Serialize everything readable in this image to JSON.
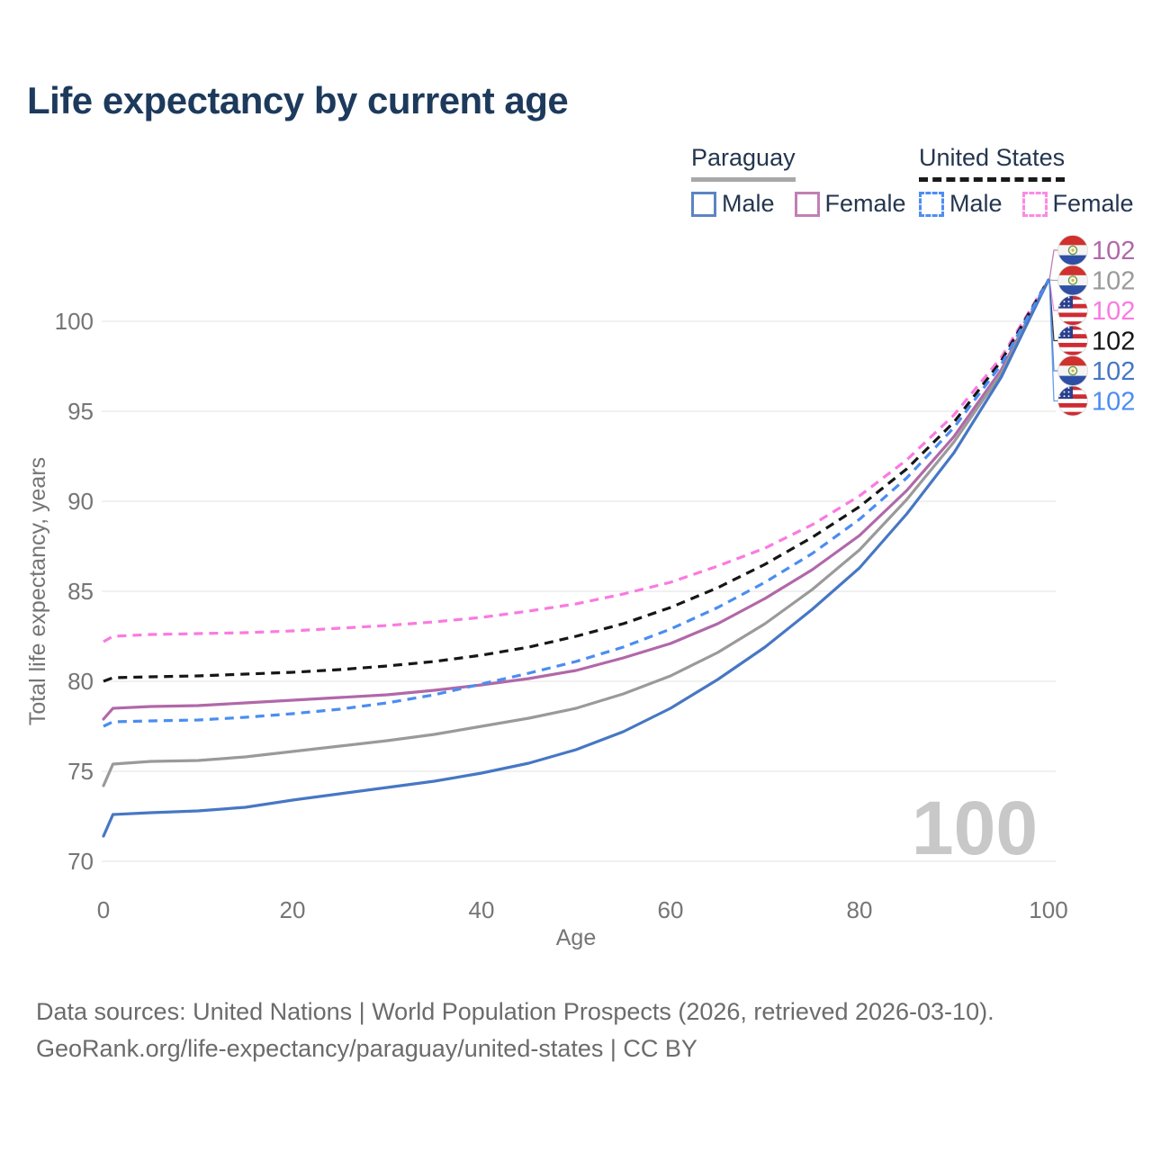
{
  "title": "Life expectancy by current age",
  "watermark": "100",
  "footer": {
    "line1": "Data sources: United Nations | World Population Prospects (2026, retrieved 2026-03-10).",
    "line2": "GeoRank.org/life-expectancy/paraguay/united-states | CC BY"
  },
  "legend": {
    "groups": [
      {
        "country": "Paraguay",
        "line_style": "solid",
        "line_color": "#a8a8a8",
        "items": [
          {
            "label": "Male",
            "color": "#5b84c4",
            "dashed": false
          },
          {
            "label": "Female",
            "color": "#c17fb5",
            "dashed": false
          }
        ]
      },
      {
        "country": "United States",
        "line_style": "dashed",
        "line_color": "#1a1a1a",
        "items": [
          {
            "label": "Male",
            "color": "#4e8df2",
            "dashed": true
          },
          {
            "label": "Female",
            "color": "#fb8ae4",
            "dashed": true
          }
        ]
      }
    ]
  },
  "chart_data": {
    "type": "line",
    "title": "Life expectancy by current age",
    "xlabel": "Age",
    "ylabel": "Total life expectancy, years",
    "xlim": [
      0,
      100
    ],
    "ylim": [
      70,
      102.5
    ],
    "xticks": [
      0,
      20,
      40,
      60,
      80,
      100
    ],
    "yticks": [
      70,
      75,
      80,
      85,
      90,
      95,
      100
    ],
    "grid": "horizontal-only",
    "legend_position": "top-right",
    "x": [
      0,
      1,
      5,
      10,
      15,
      20,
      25,
      30,
      35,
      40,
      45,
      50,
      55,
      60,
      65,
      70,
      75,
      80,
      85,
      90,
      95,
      100
    ],
    "series": [
      {
        "id": "py-female",
        "name": "Paraguay — Female",
        "flag": "py",
        "color": "#b168a8",
        "dashed": false,
        "end_label": "102",
        "values": [
          77.9,
          78.5,
          78.6,
          78.65,
          78.8,
          78.95,
          79.1,
          79.25,
          79.5,
          79.8,
          80.15,
          80.6,
          81.3,
          82.1,
          83.2,
          84.6,
          86.2,
          88.1,
          90.6,
          93.6,
          97.3,
          102.3
        ]
      },
      {
        "id": "py-both",
        "name": "Paraguay — Both sexes",
        "flag": "py",
        "color": "#9a9a9a",
        "dashed": false,
        "end_label": "102",
        "values": [
          74.2,
          75.4,
          75.55,
          75.6,
          75.8,
          76.1,
          76.4,
          76.7,
          77.05,
          77.5,
          77.95,
          78.5,
          79.3,
          80.3,
          81.6,
          83.2,
          85.1,
          87.3,
          90.1,
          93.3,
          97.1,
          102.3
        ]
      },
      {
        "id": "us-female",
        "name": "United States — Female",
        "flag": "us",
        "color": "#fa7ae0",
        "dashed": true,
        "end_label": "102",
        "values": [
          82.2,
          82.5,
          82.6,
          82.65,
          82.7,
          82.8,
          82.95,
          83.1,
          83.3,
          83.55,
          83.9,
          84.3,
          84.85,
          85.5,
          86.4,
          87.4,
          88.7,
          90.3,
          92.3,
          94.8,
          98.0,
          102.3
        ]
      },
      {
        "id": "us-both",
        "name": "United States — Both sexes",
        "flag": "us",
        "color": "#161616",
        "dashed": true,
        "end_label": "102",
        "values": [
          80.0,
          80.2,
          80.25,
          80.3,
          80.4,
          80.5,
          80.65,
          80.85,
          81.1,
          81.45,
          81.9,
          82.5,
          83.2,
          84.1,
          85.2,
          86.5,
          88.0,
          89.7,
          91.8,
          94.4,
          97.8,
          102.3
        ]
      },
      {
        "id": "py-male",
        "name": "Paraguay — Male",
        "flag": "py",
        "color": "#4677c4",
        "dashed": false,
        "end_label": "102",
        "values": [
          71.4,
          72.6,
          72.7,
          72.8,
          73.0,
          73.4,
          73.75,
          74.1,
          74.45,
          74.9,
          75.45,
          76.2,
          77.2,
          78.5,
          80.1,
          81.9,
          84.0,
          86.3,
          89.3,
          92.7,
          96.9,
          102.3
        ]
      },
      {
        "id": "us-male",
        "name": "United States — Male",
        "flag": "us",
        "color": "#4b8df0",
        "dashed": true,
        "end_label": "102",
        "values": [
          77.5,
          77.75,
          77.8,
          77.85,
          78.0,
          78.2,
          78.45,
          78.8,
          79.25,
          79.85,
          80.45,
          81.1,
          81.9,
          82.9,
          84.1,
          85.5,
          87.1,
          89.0,
          91.3,
          94.1,
          97.6,
          102.3
        ]
      }
    ]
  }
}
